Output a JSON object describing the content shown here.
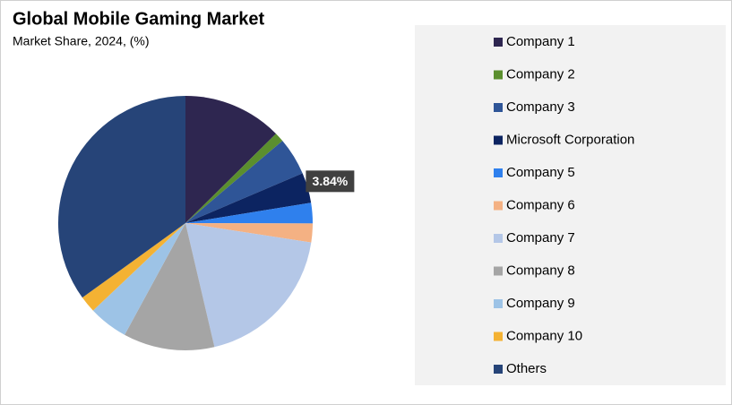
{
  "chart_data": {
    "type": "pie",
    "title": "Global Mobile Gaming Market",
    "subtitle": "Market Share, 2024, (%)",
    "categories": [
      "Company 1",
      "Company 2",
      "Company 3",
      "Microsoft Corporation",
      "Company 5",
      "Company 6",
      "Company 7",
      "Company 8",
      "Company 9",
      "Company 10",
      "Others"
    ],
    "values": [
      12.6,
      1.2,
      4.8,
      3.84,
      2.6,
      2.4,
      18.9,
      11.6,
      5.0,
      2.1,
      34.96
    ],
    "value_labels": [
      null,
      null,
      null,
      "3.84%",
      null,
      null,
      null,
      null,
      null,
      null,
      null
    ],
    "colors": [
      "#2e2650",
      "#5b8f2e",
      "#2f5597",
      "#0c2461",
      "#2f80ed",
      "#f4b183",
      "#b4c7e7",
      "#a5a5a5",
      "#9dc3e6",
      "#f4b233",
      "#264478"
    ],
    "legend": "right"
  }
}
